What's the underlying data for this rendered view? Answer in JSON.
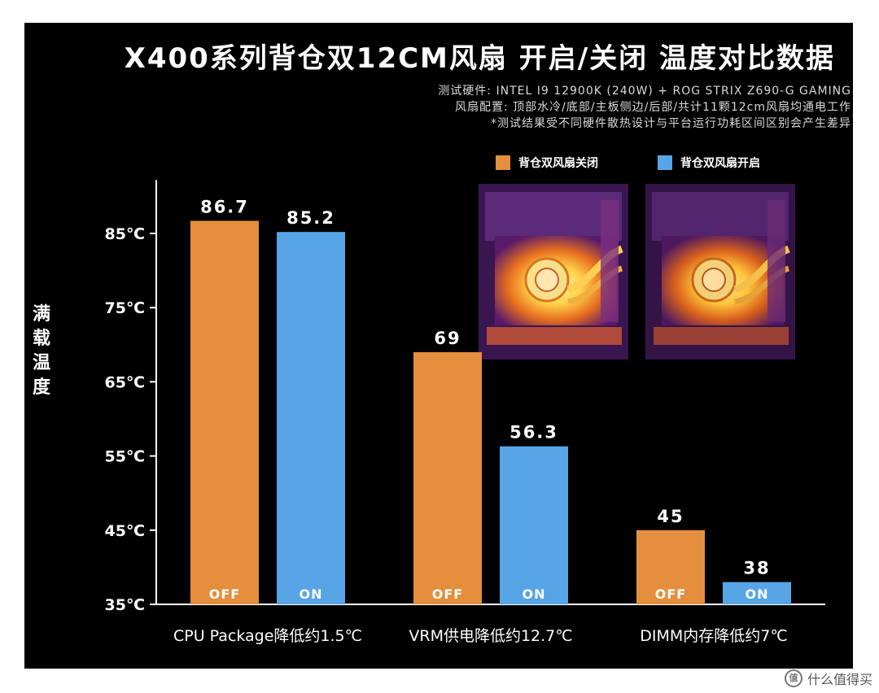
{
  "colors": {
    "off": "#E48F3D",
    "on": "#57A5E6",
    "background": "#000000",
    "text": "#FFFFFF"
  },
  "header": {
    "title": "X400系列背仓双12CM风扇 开启/关闭 温度对比数据",
    "sub1": "测试硬件: INTEL I9 12900K (240W) + ROG STRIX Z690-G GAMING",
    "sub2": "风扇配置: 顶部水冷/底部/主板侧边/后部/共计11颗12cm风扇均通电工作",
    "sub3": "*测试结果受不同硬件散热设计与平台运行功耗区间区别会产生差异"
  },
  "watermark": {
    "text": "什么值得买",
    "icon": "zhi-icon",
    "icon_glyph": "值"
  },
  "chart_data": {
    "type": "bar",
    "categories": [
      "CPU Package降低约1.5℃",
      "VRM供电降低约12.7℃",
      "DIMM内存降低约7℃"
    ],
    "series": [
      {
        "name": "背仓双风扇关闭",
        "values": [
          86.7,
          69,
          45
        ],
        "value_labels": [
          "86.7",
          "69",
          "45"
        ],
        "bar_text": "OFF"
      },
      {
        "name": "背仓双风扇开启",
        "values": [
          85.2,
          56.3,
          38
        ],
        "value_labels": [
          "85.2",
          "56.3",
          "38"
        ],
        "bar_text": "ON"
      }
    ],
    "ylabel": "满载温度",
    "ylim": [
      35,
      90
    ],
    "yticks": [
      35,
      45,
      55,
      65,
      75,
      85
    ],
    "ytick_labels": [
      "35℃",
      "45℃",
      "55℃",
      "65℃",
      "75℃",
      "85℃"
    ],
    "legend_position": "top-right",
    "grid": false
  }
}
